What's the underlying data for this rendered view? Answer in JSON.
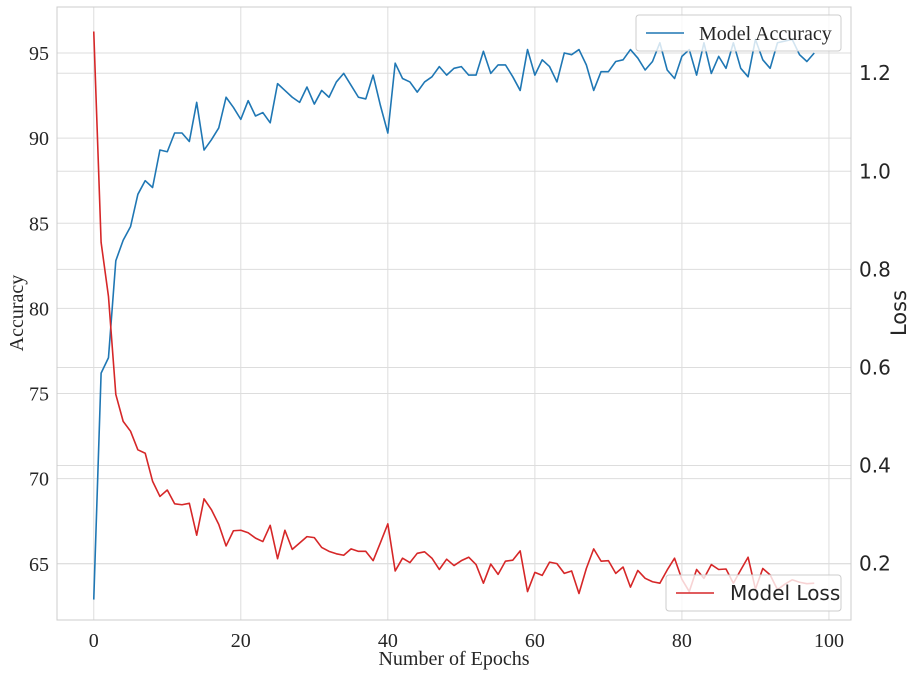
{
  "chart_data": {
    "type": "line",
    "xlabel": "Number of Epochs",
    "ylabel_left": "Accuracy",
    "ylabel_right": "Loss",
    "xlim": [
      -5,
      103
    ],
    "ylim_left": [
      61.7,
      97.7
    ],
    "ylim_right": [
      0.085,
      1.335
    ],
    "x_ticks": [
      0,
      20,
      40,
      60,
      80,
      100
    ],
    "y_left_ticks": [
      65,
      70,
      75,
      80,
      85,
      90,
      95
    ],
    "y_right_ticks": [
      0.2,
      0.4,
      0.6,
      0.8,
      1.0,
      1.2
    ],
    "y_right_tick_labels": [
      "0.2",
      "0.4",
      "0.6",
      "0.8",
      "1.0",
      "1.2"
    ],
    "grid": true,
    "series": [
      {
        "name": "Model Accuracy",
        "axis": "left",
        "color": "#1f77b4",
        "legend_position": "top-right",
        "x_start": 0,
        "values": [
          62.9,
          76.2,
          77.1,
          82.8,
          84.0,
          84.8,
          86.7,
          87.5,
          87.1,
          89.3,
          89.2,
          90.3,
          90.3,
          89.8,
          92.1,
          89.3,
          89.9,
          90.6,
          92.4,
          91.8,
          91.1,
          92.2,
          91.3,
          91.5,
          90.9,
          93.2,
          92.8,
          92.4,
          92.1,
          93.0,
          92.0,
          92.8,
          92.4,
          93.3,
          93.8,
          93.1,
          92.4,
          92.3,
          93.7,
          91.9,
          90.3,
          94.4,
          93.5,
          93.3,
          92.7,
          93.3,
          93.6,
          94.2,
          93.7,
          94.1,
          94.2,
          93.7,
          93.7,
          95.1,
          93.8,
          94.3,
          94.3,
          93.6,
          92.8,
          95.2,
          93.7,
          94.6,
          94.2,
          93.3,
          95.0,
          94.9,
          95.2,
          94.3,
          92.8,
          93.9,
          93.9,
          94.5,
          94.6,
          95.2,
          94.7,
          94.0,
          94.5,
          95.6,
          94.0,
          93.5,
          94.8,
          95.2,
          93.7,
          95.6,
          93.8,
          94.8,
          94.1,
          95.6,
          94.1,
          93.6,
          95.8,
          94.6,
          94.1,
          95.6,
          95.7,
          95.8,
          94.9,
          94.5,
          95.0
        ]
      },
      {
        "name": "Model Loss",
        "axis": "right",
        "color": "#d62728",
        "legend_position": "bottom-right",
        "x_start": 0,
        "values": [
          1.285,
          0.855,
          0.745,
          0.545,
          0.49,
          0.47,
          0.432,
          0.425,
          0.368,
          0.337,
          0.35,
          0.322,
          0.32,
          0.323,
          0.258,
          0.332,
          0.31,
          0.28,
          0.236,
          0.267,
          0.268,
          0.263,
          0.252,
          0.245,
          0.278,
          0.21,
          0.268,
          0.229,
          0.242,
          0.255,
          0.253,
          0.233,
          0.225,
          0.22,
          0.217,
          0.23,
          0.225,
          0.225,
          0.206,
          0.243,
          0.281,
          0.185,
          0.211,
          0.202,
          0.221,
          0.224,
          0.211,
          0.188,
          0.209,
          0.196,
          0.206,
          0.213,
          0.198,
          0.16,
          0.199,
          0.178,
          0.205,
          0.207,
          0.226,
          0.143,
          0.182,
          0.176,
          0.203,
          0.2,
          0.18,
          0.185,
          0.139,
          0.19,
          0.23,
          0.205,
          0.206,
          0.18,
          0.193,
          0.152,
          0.186,
          0.17,
          0.163,
          0.16,
          0.187,
          0.211,
          0.168,
          0.143,
          0.188,
          0.17,
          0.198,
          0.188,
          0.189,
          0.16,
          0.187,
          0.213,
          0.148,
          0.19,
          0.177,
          0.147,
          0.158,
          0.167,
          0.162,
          0.159,
          0.16
        ]
      }
    ]
  }
}
